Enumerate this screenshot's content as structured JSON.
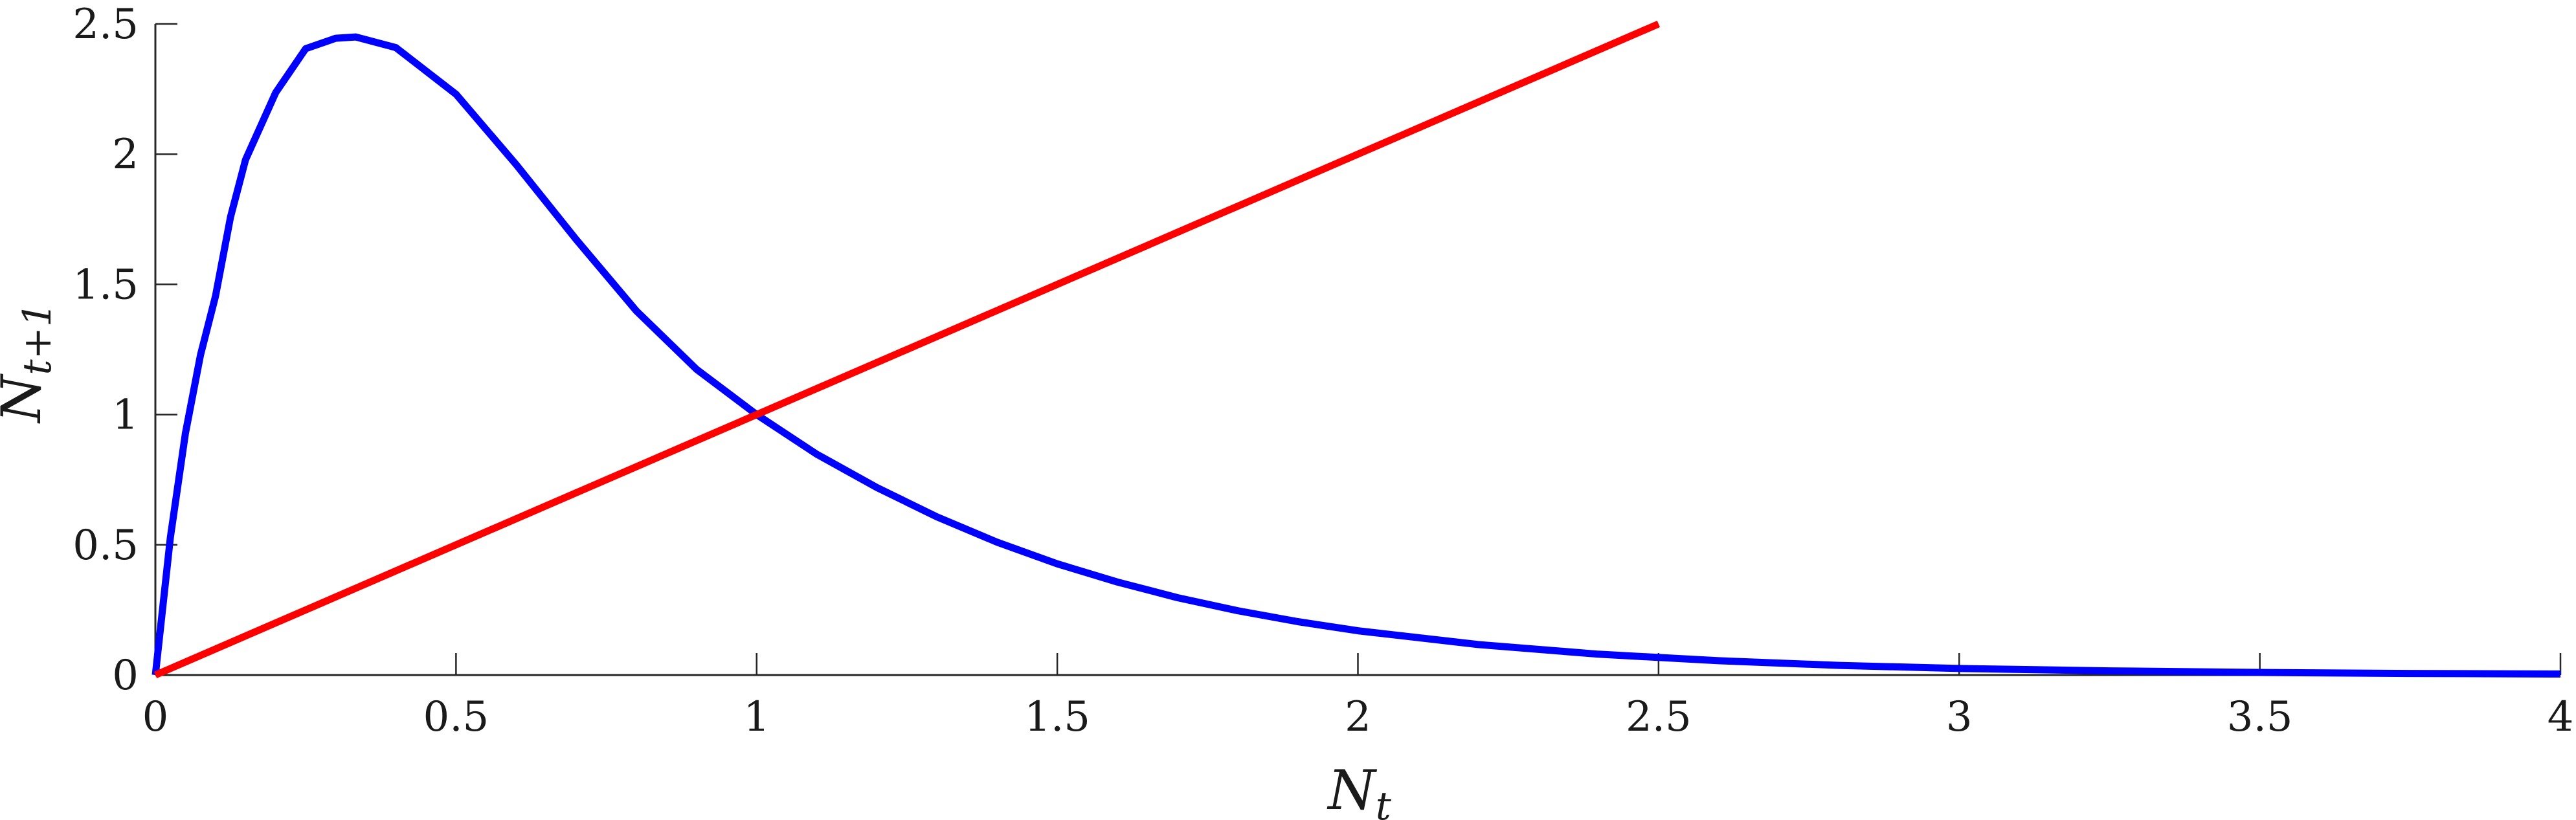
{
  "chart_data": {
    "type": "line",
    "xlabel": {
      "main": "N",
      "sub": "t"
    },
    "ylabel": {
      "main": "N",
      "sub": "t+1"
    },
    "xlim": [
      0,
      4
    ],
    "ylim": [
      0,
      2.5
    ],
    "x_ticks": [
      0,
      0.5,
      1,
      1.5,
      2,
      2.5,
      3,
      3.5,
      4
    ],
    "x_tick_labels": [
      "0",
      "0.5",
      "1",
      "1.5",
      "2",
      "2.5",
      "3",
      "3.5",
      "4"
    ],
    "y_ticks": [
      0,
      0.5,
      1,
      1.5,
      2,
      2.5
    ],
    "y_tick_labels": [
      "0",
      "0.5",
      "1",
      "1.5",
      "2",
      "2.5"
    ],
    "grid": false,
    "series": [
      {
        "color": "#0000ff",
        "points": [
          [
            0,
            0
          ],
          [
            0.025,
            0.529
          ],
          [
            0.05,
            0.928
          ],
          [
            0.075,
            1.229
          ],
          [
            0.1,
            1.455
          ],
          [
            0.125,
            1.759
          ],
          [
            0.15,
            1.979
          ],
          [
            0.2,
            2.236
          ],
          [
            0.25,
            2.405
          ],
          [
            0.3,
            2.445
          ],
          [
            0.333,
            2.45
          ],
          [
            0.4,
            2.409
          ],
          [
            0.5,
            2.23
          ],
          [
            0.6,
            1.96
          ],
          [
            0.7,
            1.672
          ],
          [
            0.8,
            1.398
          ],
          [
            0.9,
            1.174
          ],
          [
            1.0,
            1.0
          ],
          [
            1.1,
            0.848
          ],
          [
            1.2,
            0.72
          ],
          [
            1.3,
            0.607
          ],
          [
            1.4,
            0.51
          ],
          [
            1.5,
            0.427
          ],
          [
            1.6,
            0.357
          ],
          [
            1.7,
            0.297
          ],
          [
            1.8,
            0.247
          ],
          [
            1.9,
            0.205
          ],
          [
            2.0,
            0.17
          ],
          [
            2.2,
            0.117
          ],
          [
            2.4,
            0.08
          ],
          [
            2.6,
            0.055
          ],
          [
            2.8,
            0.037
          ],
          [
            3.0,
            0.025
          ],
          [
            3.25,
            0.016
          ],
          [
            3.5,
            0.01
          ],
          [
            3.75,
            0.006
          ],
          [
            4.0,
            0.004
          ]
        ]
      },
      {
        "color": "#ff0000",
        "points": [
          [
            0,
            0
          ],
          [
            2.5,
            2.5
          ]
        ]
      }
    ]
  }
}
